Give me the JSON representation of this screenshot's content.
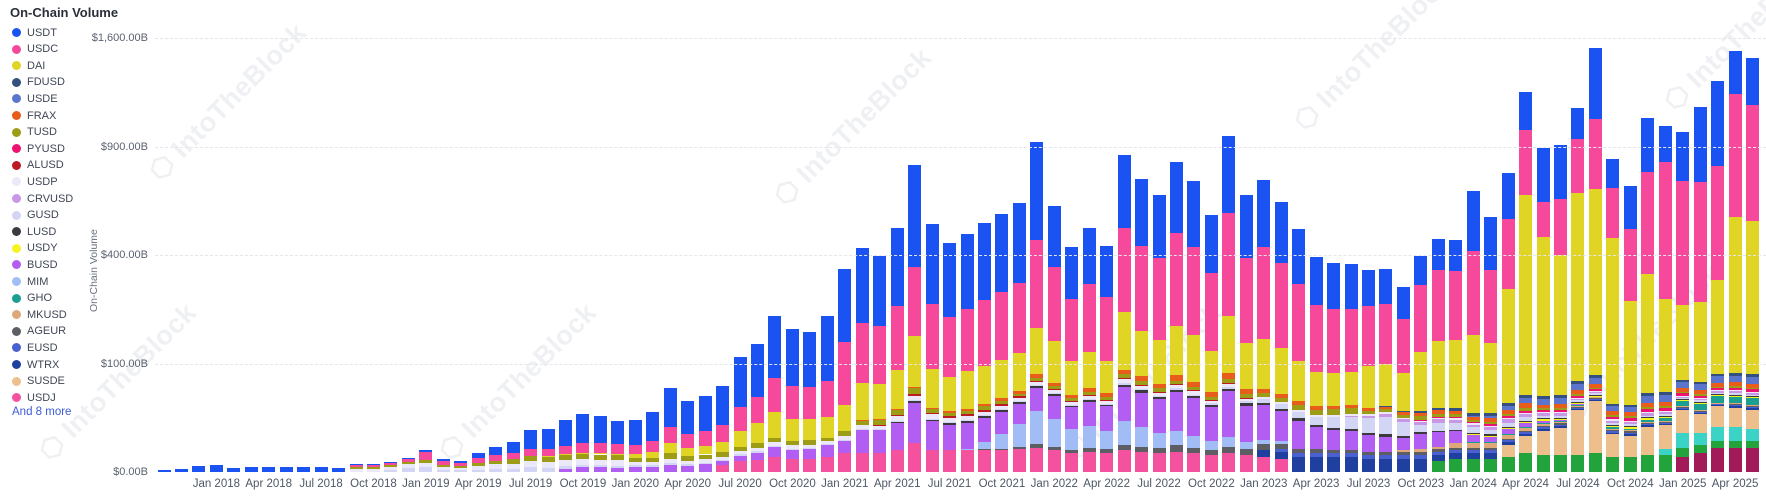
{
  "title": "On-Chain Volume",
  "watermark_text": "IntoTheBlock",
  "legend": {
    "more_label": "And 8 more"
  },
  "y_axis": {
    "title": "On-Chain Volume",
    "scale": "sqrt",
    "max_value": 1600,
    "ticks": [
      {
        "label": "$0.00B",
        "value": 0
      },
      {
        "label": "$100.00B",
        "value": 100
      },
      {
        "label": "$400.00B",
        "value": 400
      },
      {
        "label": "$900.00B",
        "value": 900
      },
      {
        "label": "$1,600.00B",
        "value": 1600
      }
    ]
  },
  "x_axis": {
    "tick_labels": [
      "Jan 2018",
      "Apr 2018",
      "Jul 2018",
      "Oct 2018",
      "Jan 2019",
      "Apr 2019",
      "Jul 2019",
      "Oct 2019",
      "Jan 2020",
      "Apr 2020",
      "Jul 2020",
      "Oct 2020",
      "Jan 2021",
      "Apr 2021",
      "Jul 2021",
      "Oct 2021",
      "Jan 2022",
      "Apr 2022",
      "Jul 2022",
      "Oct 2022",
      "Jan 2023",
      "Apr 2023",
      "Jul 2023",
      "Oct 2023",
      "Jan 2024",
      "Apr 2024",
      "Jul 2024",
      "Oct 2024",
      "Jan 2025",
      "Apr 2025"
    ],
    "first_tick_index": 3,
    "tick_every": 3
  },
  "chart_data": {
    "type": "bar",
    "stacked": true,
    "unit": "billions USD (monthly on-chain volume)",
    "x_start": "Oct 2017",
    "x_count": 92,
    "x_interval": "month",
    "note": "values in $B; series stacked bottom-to-top in reverse list order; sqrt y-scale",
    "series": [
      {
        "name": "USDT",
        "color": "#1b52f2",
        "in_legend": true,
        "start": 0,
        "values": [
          0.05,
          0.1,
          0.3,
          0.45,
          0.15,
          0.2,
          0.25,
          0.25,
          0.2,
          0.25,
          0.15,
          0.1,
          0.1,
          0.15,
          0.3,
          0.8,
          0.45,
          0.35,
          1.5,
          3,
          4.6,
          10.5,
          11.5,
          17.5,
          21,
          19.5,
          15.5,
          17,
          22,
          43,
          31,
          35,
          45,
          76,
          90,
          132,
          112,
          106,
          135,
          205,
          240,
          215,
          270,
          445,
          280,
          240,
          255,
          275,
          290,
          310,
          470,
          245,
          175,
          205,
          175,
          345,
          295,
          265,
          330,
          290,
          225,
          390,
          262,
          295,
          250,
          200,
          155,
          145,
          140,
          115,
          112,
          92,
          100,
          118,
          115,
          255,
          205,
          215,
          232,
          270,
          280,
          185,
          470,
          150,
          190,
          300,
          200,
          265,
          420,
          500,
          295,
          315
        ]
      },
      {
        "name": "USDC",
        "color": "#f7499c",
        "in_legend": true,
        "start": 11,
        "values": [
          0.15,
          0.2,
          0.35,
          0.6,
          2,
          0.5,
          0.35,
          0.9,
          1.3,
          1.7,
          2.4,
          2.4,
          3.2,
          4,
          4.2,
          3.6,
          3.6,
          4.8,
          10,
          7.5,
          8.5,
          11,
          21,
          28,
          44,
          38,
          37,
          45,
          106,
          120,
          115,
          145,
          200,
          150,
          128,
          140,
          155,
          170,
          185,
          280,
          210,
          150,
          180,
          155,
          290,
          265,
          240,
          305,
          270,
          212,
          365,
          248,
          280,
          240,
          195,
          152,
          143,
          142,
          138,
          140,
          115,
          175,
          200,
          195,
          255,
          205,
          258,
          342,
          150,
          230,
          280,
          380,
          220,
          255,
          430,
          560,
          480,
          470,
          485,
          660,
          605
        ]
      },
      {
        "name": "DAI",
        "color": "#e0d425",
        "in_legend": true,
        "start": 22,
        "values": [
          0.1,
          0.3,
          0.4,
          0.5,
          0.5,
          1.1,
          1.8,
          4.2,
          2.6,
          3.2,
          4.2,
          9,
          13.5,
          21,
          16,
          15.5,
          16,
          24,
          45,
          42,
          55,
          95,
          56,
          46,
          52,
          56,
          60,
          64,
          95,
          78,
          54,
          62,
          53,
          128,
          92,
          82,
          102,
          90,
          70,
          122,
          82,
          92,
          78,
          62,
          48,
          46,
          46,
          60,
          62,
          52,
          90,
          110,
          112,
          130,
          112,
          244,
          600,
          420,
          350,
          590,
          600,
          425,
          210,
          280,
          200,
          165,
          175,
          230,
          470,
          455
        ]
      },
      {
        "name": "FDUSD",
        "color": "#33507e",
        "in_legend": true,
        "start": 70,
        "values": [
          1,
          1.5,
          2,
          2.5,
          3,
          3,
          3,
          4,
          5,
          4,
          4,
          5,
          5,
          3,
          3,
          5,
          5,
          4,
          4,
          4,
          5,
          5
        ]
      },
      {
        "name": "USDE",
        "color": "#5b74cc",
        "in_legend": true,
        "start": 75,
        "values": [
          1,
          2,
          4,
          6,
          7,
          8,
          9,
          10,
          5,
          5,
          8,
          8,
          9,
          9,
          10,
          10,
          10
        ]
      },
      {
        "name": "FRAX",
        "color": "#e85d1a",
        "in_legend": true,
        "start": 40,
        "values": [
          0.5,
          0.5,
          1,
          1,
          1,
          1.5,
          2,
          3,
          4,
          4,
          6,
          5,
          4,
          5,
          5,
          8,
          8,
          7,
          9,
          8,
          6,
          10,
          7,
          6,
          5,
          5,
          3.5,
          3.5,
          3.5,
          3,
          3,
          3,
          3,
          3.5,
          3.5,
          3,
          3,
          4,
          5,
          4,
          4,
          5,
          5,
          4,
          4,
          5,
          5,
          5,
          5,
          6,
          6,
          6
        ]
      },
      {
        "name": "TUSD",
        "color": "#9c9c17",
        "in_legend": true,
        "start": 11,
        "values": [
          0.15,
          0.15,
          0.2,
          0.3,
          0.6,
          0.25,
          0.15,
          0.4,
          0.6,
          0.8,
          1.1,
          1.1,
          1.2,
          1.4,
          1.3,
          1.2,
          0.8,
          0.8,
          1.5,
          1,
          1.2,
          1.3,
          1.8,
          2,
          2.5,
          2.2,
          2.2,
          2,
          3,
          4,
          4,
          5,
          8,
          4,
          3.5,
          3.5,
          3.5,
          3.5,
          3.5,
          4,
          4,
          3.5,
          4,
          3.5,
          6,
          5,
          4.5,
          5,
          4.5,
          4,
          6,
          4.5,
          5,
          5,
          5,
          5,
          6,
          6,
          3,
          3,
          2.5,
          4,
          3,
          3,
          2,
          2,
          2,
          3,
          2,
          2,
          2,
          2,
          2,
          2,
          2,
          2,
          2,
          2,
          2,
          2,
          2
        ]
      },
      {
        "name": "PYUSD",
        "color": "#ee1272",
        "in_legend": true,
        "start": 72,
        "values": [
          0.5,
          1,
          1,
          1,
          1.5,
          2,
          2,
          2,
          2,
          2.5,
          2.5,
          2,
          2,
          3,
          3,
          3,
          3,
          3.5,
          4,
          4
        ]
      },
      {
        "name": "ALUSD",
        "color": "#bd1a26",
        "in_legend": true,
        "start": 41,
        "values": [
          0.5,
          1.5,
          2.5,
          1.5,
          1.5,
          1.5,
          2,
          2,
          2,
          2.5,
          1.5,
          1,
          1,
          1,
          2,
          1.5,
          1,
          1,
          1,
          0.5,
          1,
          0.5
        ]
      },
      {
        "name": "USDP",
        "color": "#ebe8fa",
        "in_legend": true,
        "start": 11,
        "values": [
          0.1,
          0.1,
          0.15,
          0.35,
          0.5,
          0.15,
          0.1,
          0.25,
          0.4,
          0.5,
          0.8,
          0.7,
          0.9,
          1,
          0.9,
          0.8,
          0.5,
          0.5,
          0.8,
          0.6,
          0.7,
          0.7,
          1,
          1.2,
          1.5,
          1.4,
          1.4,
          1.5,
          2.5,
          3,
          3,
          4,
          6,
          4,
          3.5,
          3.5,
          3.5,
          3.5,
          3.5,
          4,
          4,
          3.5,
          4,
          3.5,
          6,
          5,
          4.5,
          5,
          4.5,
          3.5,
          5,
          4,
          3,
          3,
          2.5,
          2,
          2,
          2,
          2,
          2,
          1.5,
          1.5,
          1.5,
          1.5,
          1,
          1,
          1,
          1,
          1,
          1,
          1,
          1,
          1,
          1,
          1,
          1,
          1,
          1,
          1,
          1,
          1
        ]
      },
      {
        "name": "CRVUSD",
        "color": "#c897e6",
        "in_legend": true,
        "start": 68,
        "values": [
          1.5,
          2,
          2.5,
          2.5,
          2.5,
          3,
          3,
          2,
          2,
          3,
          3.5,
          3,
          3,
          2.5,
          2.5,
          2,
          2,
          2.5,
          2.5,
          2,
          2,
          2,
          2.5,
          2.5
        ]
      },
      {
        "name": "GUSD",
        "color": "#d3d5f5",
        "in_legend": true,
        "start": 13,
        "values": [
          0.05,
          0.15,
          0.2,
          0.05,
          0.05,
          0.05,
          0.1,
          0.1,
          0.2,
          0.15,
          0.2,
          0.2,
          0.2,
          0.2,
          0.2,
          0.2,
          0.3,
          0.2,
          0.2,
          0.3,
          0.4,
          0.5,
          0.6,
          0.5,
          0.5,
          0.6,
          0.5,
          0.5,
          0.5,
          0.8,
          1,
          0.8,
          0.8,
          0.8,
          1,
          1,
          1,
          2,
          1.5,
          1,
          1.5,
          1.5,
          2,
          2,
          2,
          2.5,
          2.5,
          2,
          3,
          2.5,
          4,
          5,
          6,
          7,
          9,
          10,
          12,
          14,
          10,
          5,
          6,
          5,
          4,
          3,
          3,
          3,
          2,
          2,
          2,
          2,
          1.5,
          1.5,
          1.5,
          1.5,
          1.5,
          1.5,
          1.5,
          2,
          2
        ]
      },
      {
        "name": "LUSD",
        "color": "#3b3b3f",
        "in_legend": true,
        "start": 42,
        "values": [
          1.5,
          2.5,
          1.5,
          1.5,
          2,
          2,
          2,
          2.5,
          3,
          2,
          1.5,
          2,
          1.5,
          3,
          3,
          2.5,
          3,
          2.5,
          2,
          3.5,
          2.5,
          2.5,
          2,
          2,
          1.5,
          1.5,
          1.5,
          1.5,
          1.5,
          1,
          1,
          1,
          1,
          1,
          1,
          1,
          1,
          1,
          1,
          1,
          1,
          1,
          1,
          1,
          1,
          1,
          1,
          1,
          1,
          1
        ]
      },
      {
        "name": "USDY",
        "color": "#f7f321",
        "in_legend": true,
        "start": 75,
        "values": [
          0.5,
          0.5,
          1,
          1,
          1,
          1,
          1,
          1,
          1,
          1,
          1.5,
          1.5,
          1.5,
          1.5,
          1.5,
          2,
          2
        ]
      },
      {
        "name": "BUSD",
        "color": "#b35ef2",
        "in_legend": true,
        "start": 23,
        "values": [
          0.1,
          0.2,
          0.2,
          0.15,
          0.2,
          0.2,
          0.4,
          0.3,
          0.5,
          0.6,
          1.3,
          2,
          3.5,
          2.6,
          3,
          4,
          5,
          12,
          12,
          16,
          33,
          18,
          15,
          16,
          17,
          18,
          20,
          28,
          26,
          20,
          24,
          22,
          40,
          36,
          32,
          40,
          35,
          28,
          45,
          30,
          30,
          24,
          18,
          13,
          11,
          10,
          8,
          7,
          6,
          8,
          8,
          7,
          4,
          3,
          3,
          3,
          2,
          1,
          1
        ]
      },
      {
        "name": "MIM",
        "color": "#a2bdf5",
        "in_legend": true,
        "start": 46,
        "values": [
          0.5,
          3,
          8,
          14,
          25,
          18,
          12,
          13,
          10,
          16,
          12,
          8,
          8,
          6,
          4,
          5,
          3,
          2,
          1.5
        ]
      },
      {
        "name": "GHO",
        "color": "#1a9f90",
        "in_legend": true,
        "start": 75,
        "values": [
          0.5,
          0.5,
          0.5,
          0.5,
          0.5,
          0.5,
          1,
          1,
          1,
          1,
          1.5,
          2,
          6,
          7,
          9,
          8,
          8
        ]
      },
      {
        "name": "MKUSD",
        "color": "#dfa878",
        "in_legend": true,
        "start": 71,
        "values": [
          0.5,
          1,
          1,
          2,
          2,
          2,
          2.5,
          2.5,
          2,
          1.5,
          1.5,
          1,
          1,
          1,
          1,
          1,
          0.5,
          0.5,
          0.5,
          1,
          1
        ]
      },
      {
        "name": "AGEUR",
        "color": "#5d5e63",
        "in_legend": true,
        "start": 47,
        "values": [
          0.5,
          0.5,
          1,
          1.5,
          1.5,
          1,
          1.5,
          1.5,
          2,
          2,
          2,
          2.5,
          2,
          1.5,
          2.5,
          2,
          2.5,
          2,
          1.5,
          1.5,
          1,
          1,
          1,
          1,
          1,
          1,
          1,
          1,
          1,
          1,
          1,
          1,
          1,
          1,
          1,
          1,
          1,
          1,
          1,
          1,
          1,
          1,
          1,
          1,
          1
        ]
      },
      {
        "name": "EUSD",
        "color": "#4a5fd0",
        "in_legend": true,
        "start": 64,
        "values": [
          1,
          1,
          1,
          1,
          1,
          1,
          1,
          1,
          1,
          1,
          1,
          1,
          1,
          1,
          1,
          1,
          1,
          1,
          1,
          1,
          1,
          1,
          1,
          1,
          1,
          1,
          1.5,
          1.5
        ]
      },
      {
        "name": "WTRX",
        "color": "#20409f",
        "in_legend": true,
        "start": 63,
        "values": [
          2,
          2,
          2,
          2,
          2,
          2,
          1.5,
          1.5,
          1.5,
          1.5,
          1.5,
          1.5,
          1.5,
          1.5,
          1.5,
          1.5,
          1.5,
          1.5,
          1.5,
          1.5,
          1,
          1,
          1,
          1,
          1,
          1,
          1,
          1.5,
          1.5
        ]
      },
      {
        "name": "SUSDE",
        "color": "#ecbf8d",
        "in_legend": true,
        "start": 77,
        "values": [
          4,
          8,
          12,
          14,
          30,
          40,
          10,
          9,
          15,
          14,
          20,
          16,
          20,
          18,
          17
        ]
      },
      {
        "name": "USDJ",
        "color": "#f4529f",
        "in_legend": true,
        "start": 32,
        "values": [
          0.4,
          1,
          1.2,
          1.8,
          1.5,
          1.5,
          2,
          3,
          3,
          3,
          4,
          7,
          4,
          4,
          4,
          4,
          4,
          4.5,
          5,
          4,
          3,
          3.5,
          3,
          4,
          3.5,
          3,
          3.5,
          3,
          2.5,
          3,
          2.5,
          2,
          1.5
        ]
      },
      {
        "name": "Others (teal)",
        "color": "#3bd3c5",
        "in_legend": false,
        "start": 86,
        "values": [
          2,
          8,
          7,
          9,
          9,
          8
        ]
      },
      {
        "name": "Others (green)",
        "color": "#22a33c",
        "in_legend": false,
        "start": 73,
        "values": [
          1,
          1.5,
          1.5,
          1.5,
          2,
          3,
          2.5,
          2.5,
          2.5,
          3,
          2,
          2,
          2.5,
          2.5,
          3,
          3,
          3,
          3,
          3
        ]
      },
      {
        "name": "Others (maroon)",
        "color": "#a21a57",
        "in_legend": false,
        "start": 87,
        "values": [
          2,
          3,
          5,
          5,
          5
        ]
      }
    ]
  }
}
